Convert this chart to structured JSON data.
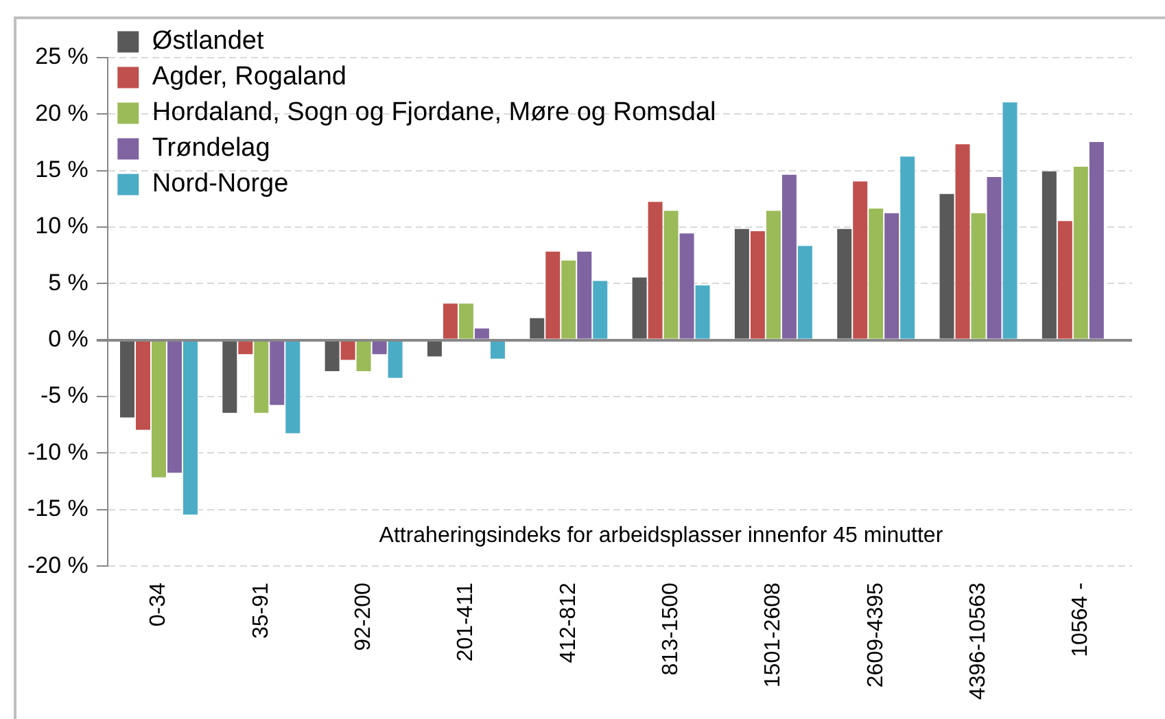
{
  "chart_data": {
    "type": "bar",
    "xlabel": "Attraheringsindeks for arbeidsplasser innenfor 45 minutter",
    "categories": [
      "0-34",
      "35-91",
      "92-200",
      "201-411",
      "412-812",
      "813-1500",
      "1501-2608",
      "2609-4395",
      "4396-10563",
      "10564 -"
    ],
    "series": [
      {
        "name": "Østlandet",
        "color": "#595959",
        "values": [
          -6.9,
          -6.5,
          -2.8,
          -1.5,
          2.0,
          5.6,
          9.9,
          9.9,
          13.0,
          15.0
        ]
      },
      {
        "name": "Agder, Rogaland",
        "color": "#c0504d",
        "values": [
          -8.0,
          -1.3,
          -1.8,
          3.3,
          7.9,
          12.3,
          9.7,
          14.1,
          17.4,
          10.6
        ]
      },
      {
        "name": "Hordaland, Sogn og Fjordane, Møre og Romsdal",
        "color": "#9bbb59",
        "values": [
          -12.2,
          -6.5,
          -2.8,
          3.3,
          7.1,
          11.5,
          11.5,
          11.7,
          11.3,
          15.4
        ]
      },
      {
        "name": "Trøndelag",
        "color": "#8064a2",
        "values": [
          -11.8,
          -5.8,
          -1.3,
          1.1,
          7.9,
          9.5,
          14.7,
          11.3,
          14.5,
          17.6
        ]
      },
      {
        "name": "Nord-Norge",
        "color": "#4bacc6",
        "values": [
          -15.5,
          -8.3,
          -3.4,
          -1.7,
          5.3,
          4.9,
          8.4,
          16.3,
          21.1,
          null
        ]
      }
    ],
    "ylim": [
      -20,
      25
    ],
    "yticks": [
      {
        "value": -20,
        "label": "-20 %"
      },
      {
        "value": -15,
        "label": "-15 %"
      },
      {
        "value": -10,
        "label": "-10 %"
      },
      {
        "value": -5,
        "label": "-5 %"
      },
      {
        "value": 0,
        "label": "0 %"
      },
      {
        "value": 5,
        "label": "5 %"
      },
      {
        "value": 10,
        "label": "10 %"
      },
      {
        "value": 15,
        "label": "15 %"
      },
      {
        "value": 20,
        "label": "20 %"
      },
      {
        "value": 25,
        "label": "25 %"
      }
    ],
    "grid": "y",
    "legend": "top left"
  }
}
